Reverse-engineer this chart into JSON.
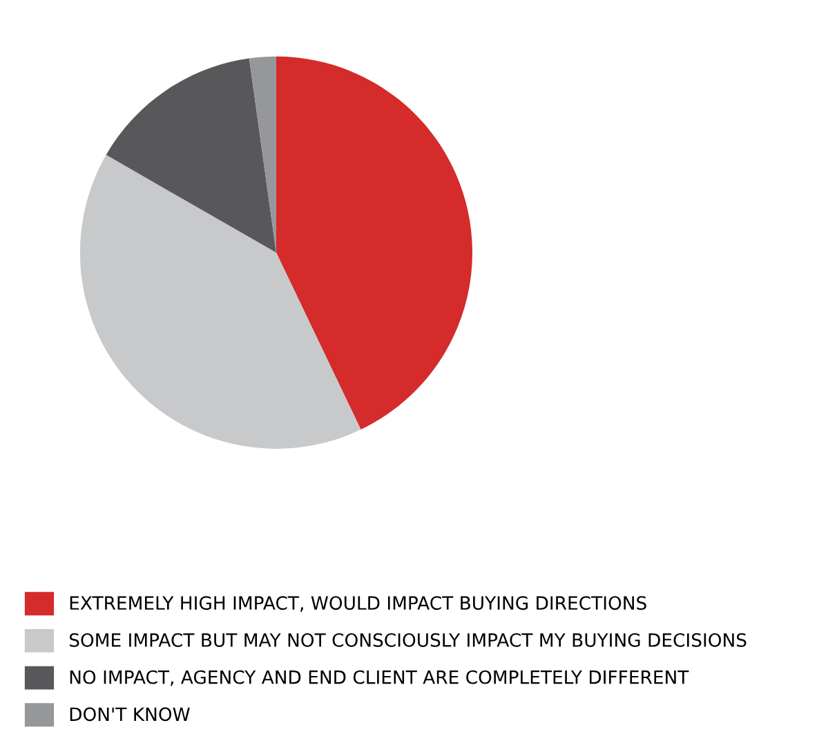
{
  "chart_data": {
    "type": "pie",
    "categories": [
      "EXTREMELY HIGH IMPACT, WOULD IMPACT BUYING DIRECTIONS",
      "SOME IMPACT BUT MAY NOT CONSCIOUSLY IMPACT MY BUYING DECISIONS",
      "NO IMPACT, AGENCY AND END CLIENT ARE COMPLETELY DIFFERENT",
      "DON'T KNOW"
    ],
    "values": [
      42.9,
      40.4,
      14.5,
      2.2
    ],
    "colors": [
      "#d52b2b",
      "#c8c9cb",
      "#58585a",
      "#96979a"
    ],
    "legend": "bottom"
  }
}
